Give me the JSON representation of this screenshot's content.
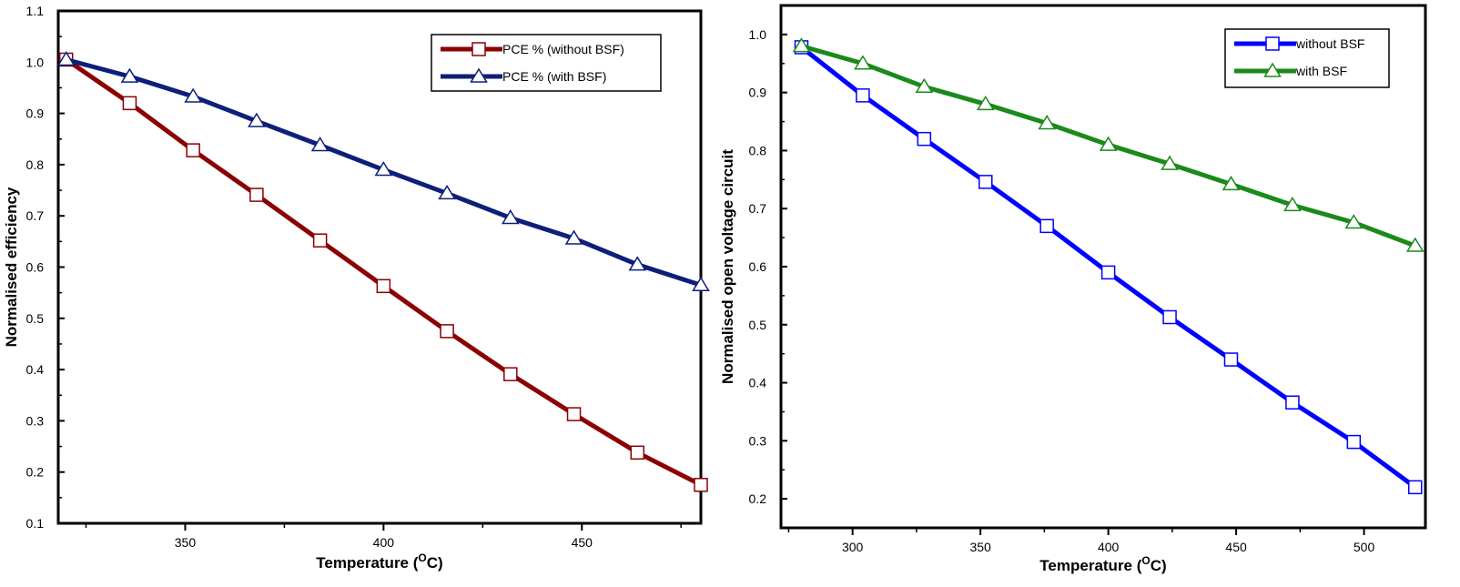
{
  "chart_data": [
    {
      "type": "line",
      "xlabel": "Temperature (",
      "xlabel_unit_sup": "O",
      "xlabel_unit_tail": "C)",
      "ylabel": "Normalised efficiency",
      "xlim": [
        318,
        480
      ],
      "ylim": [
        0.1,
        1.1
      ],
      "xticks": [
        350,
        400,
        450
      ],
      "xminor": [
        325,
        375,
        425,
        475
      ],
      "yticks": [
        0.1,
        0.2,
        0.3,
        0.4,
        0.5,
        0.6,
        0.7,
        0.8,
        0.9,
        1.0,
        1.1
      ],
      "ytick_labels": [
        "0.1",
        "0.2",
        "0.3",
        "0.4",
        "0.5",
        "0.6",
        "0.7",
        "0.8",
        "0.9",
        "1.0",
        "1.1"
      ],
      "legend_position": "top-right",
      "series": [
        {
          "name": "PCE % (without BSF)",
          "color": "#8b0000",
          "marker": "square",
          "x": [
            320,
            336,
            352,
            368,
            384,
            400,
            416,
            432,
            448,
            464,
            480
          ],
          "y": [
            1.005,
            0.92,
            0.828,
            0.741,
            0.652,
            0.563,
            0.475,
            0.391,
            0.313,
            0.238,
            0.175
          ]
        },
        {
          "name": "PCE % (with BSF)",
          "color": "#0d1f7a",
          "marker": "triangle",
          "x": [
            320,
            336,
            352,
            368,
            384,
            400,
            416,
            432,
            448,
            464,
            480
          ],
          "y": [
            1.005,
            0.972,
            0.933,
            0.885,
            0.838,
            0.79,
            0.744,
            0.696,
            0.656,
            0.605,
            0.565
          ]
        }
      ]
    },
    {
      "type": "line",
      "xlabel": "Temperature (",
      "xlabel_unit_sup": "O",
      "xlabel_unit_tail": "C)",
      "ylabel": "Normalised open voltage circuit",
      "xlim": [
        272,
        524
      ],
      "ylim": [
        0.15,
        1.05
      ],
      "xticks": [
        300,
        350,
        400,
        450,
        500
      ],
      "xminor": [
        275,
        325,
        375,
        425,
        475,
        525
      ],
      "yticks": [
        0.2,
        0.3,
        0.4,
        0.5,
        0.6,
        0.7,
        0.8,
        0.9,
        1.0
      ],
      "ytick_labels": [
        "0.2",
        "0.3",
        "0.4",
        "0.5",
        "0.6",
        "0.7",
        "0.8",
        "0.9",
        "1.0"
      ],
      "legend_position": "top-right",
      "series": [
        {
          "name": "without BSF",
          "color": "#0000ff",
          "marker": "square",
          "x": [
            280,
            304,
            328,
            352,
            376,
            400,
            424,
            448,
            472,
            496,
            520
          ],
          "y": [
            0.978,
            0.895,
            0.82,
            0.746,
            0.67,
            0.59,
            0.513,
            0.44,
            0.366,
            0.298,
            0.22
          ]
        },
        {
          "name": "with BSF",
          "color": "#1a8a1a",
          "marker": "triangle",
          "x": [
            280,
            304,
            328,
            352,
            376,
            400,
            424,
            448,
            472,
            496,
            520
          ],
          "y": [
            0.98,
            0.95,
            0.91,
            0.88,
            0.847,
            0.81,
            0.777,
            0.742,
            0.706,
            0.676,
            0.636
          ]
        }
      ]
    }
  ]
}
